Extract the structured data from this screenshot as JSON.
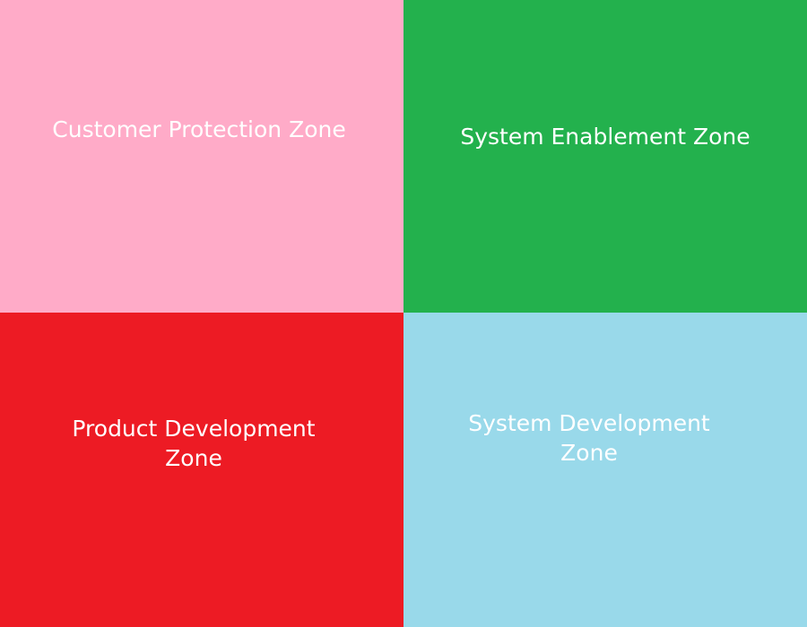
{
  "zones": [
    {
      "label": "Customer Protection Zone",
      "color": "#FFABC8"
    },
    {
      "label": "System Enablement Zone",
      "color": "#23B14D"
    },
    {
      "label": "Product Development\nZone",
      "color": "#ED1B24"
    },
    {
      "label": "System Development\nZone",
      "color": "#99D9EA"
    }
  ]
}
